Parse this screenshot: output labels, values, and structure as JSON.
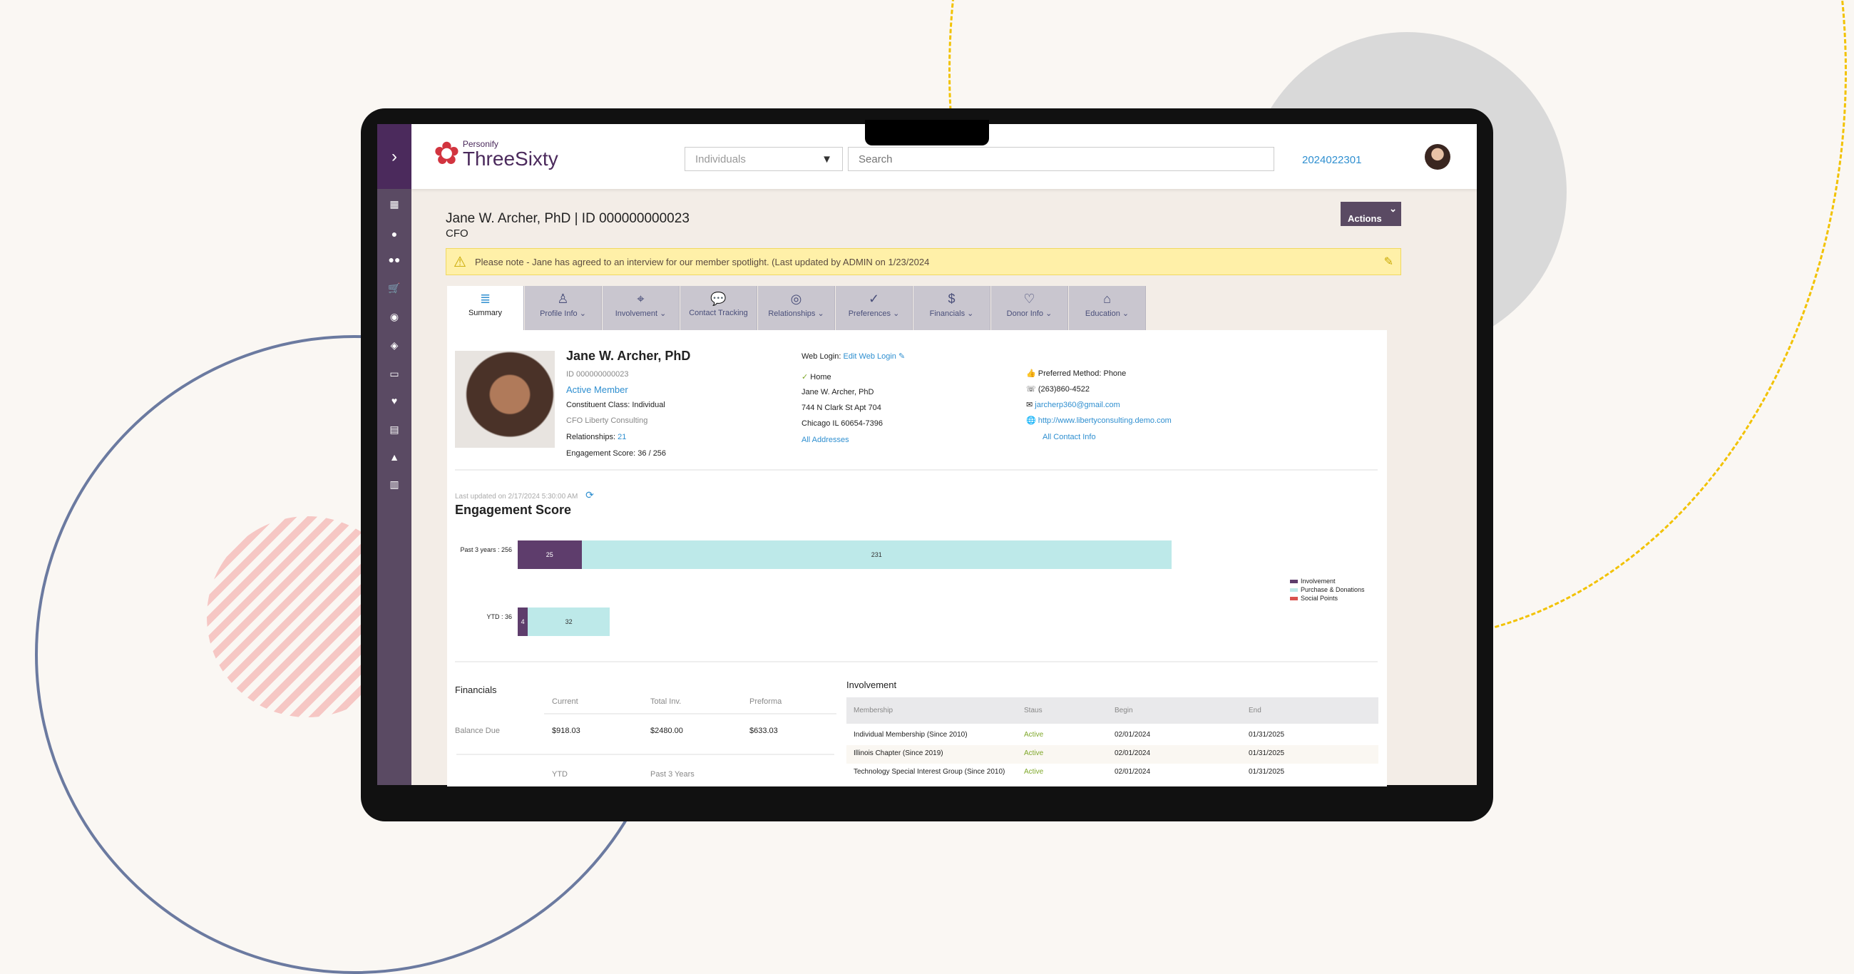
{
  "colors": {
    "sidebar": "#5a4a63",
    "brand": "#4b2a5c",
    "accent": "#2f8fd0",
    "involvement": "#5e3d6c",
    "purchase": "#bde9e9",
    "social": "#d9534f",
    "active": "#7fa82a",
    "banner": "#fff0a8"
  },
  "header": {
    "logo_small": "Personify",
    "logo_big": "ThreeSixty",
    "search_type": "Individuals",
    "search_placeholder": "Search",
    "record_id": "2024022301"
  },
  "sidebar": {
    "icons": [
      "expand-chevron-icon",
      "apps-grid-icon",
      "person-icon",
      "people-icon",
      "cart-icon",
      "badge-icon",
      "layers-icon",
      "calendar-icon",
      "heart-icon",
      "clipboard-icon",
      "graduation-cap-icon",
      "bar-chart-icon"
    ]
  },
  "page": {
    "title": "Jane W. Archer, PhD | ID 000000000023",
    "subtitle": "CFO",
    "actions": "Actions",
    "banner": "Please note - Jane has agreed to an interview for our member spotlight. (Last updated by ADMIN on 1/23/2024"
  },
  "tabs": [
    {
      "label": "Summary",
      "icon": "≣"
    },
    {
      "label": "Profile Info ⌄",
      "icon": "♙"
    },
    {
      "label": "Involvement ⌄",
      "icon": "⌖"
    },
    {
      "label": "Contact Tracking",
      "icon": "💬"
    },
    {
      "label": "Relationships ⌄",
      "icon": "◎"
    },
    {
      "label": "Preferences ⌄",
      "icon": "✓"
    },
    {
      "label": "Financials ⌄",
      "icon": "$"
    },
    {
      "label": "Donor Info ⌄",
      "icon": "♡"
    },
    {
      "label": "Education ⌄",
      "icon": "⌂"
    }
  ],
  "profile": {
    "name": "Jane W. Archer, PhD",
    "id": "ID 000000000023",
    "status": "Active Member",
    "class": "Constituent Class: Individual",
    "company": "CFO Liberty Consulting",
    "relationships_label": "Relationships: ",
    "relationships_count": "21",
    "engagement": "Engagement Score: 36 / 256",
    "web_login_label": "Web Login: ",
    "web_login_link": "Edit Web Login",
    "address_type": "Home",
    "address_name": "Jane W. Archer, PhD",
    "address_line1": "744 N Clark St Apt 704",
    "address_line2": "Chicago  IL  60654-7396",
    "all_addresses": "All Addresses",
    "preferred": "Preferred Method: Phone",
    "phone": "(263)860-4522",
    "email": "jarcherp360@gmail.com",
    "website": "http://www.libertyconsulting.demo.com",
    "all_contact": "All Contact Info"
  },
  "engagement": {
    "last_updated": "Last updated on 2/17/2024 5:30:00 AM",
    "title": "Engagement Score"
  },
  "chart_data": {
    "type": "bar",
    "orientation": "horizontal",
    "stacked": true,
    "title": "Engagement Score",
    "categories": [
      "Past 3 years : 256",
      "YTD : 36"
    ],
    "series": [
      {
        "name": "Involvement",
        "values": [
          25,
          4
        ]
      },
      {
        "name": "Purchase & Donations",
        "values": [
          231,
          32
        ]
      },
      {
        "name": "Social Points",
        "values": [
          0,
          0
        ]
      }
    ],
    "xlim": [
      0,
      256
    ],
    "legend": "right"
  },
  "financials": {
    "title": "Financials",
    "columns": [
      "Current",
      "Total Inv.",
      "Preforma"
    ],
    "row_label": "Balance Due",
    "row_values": [
      "$918.03",
      "$2480.00",
      "$633.03"
    ],
    "columns2": [
      "YTD",
      "Past 3 Years"
    ]
  },
  "involvement": {
    "title": "Involvement",
    "columns": [
      "Membership",
      "Staus",
      "Begin",
      "End"
    ],
    "rows": [
      [
        "Individual Membership (Since 2010)",
        "Active",
        "02/01/2024",
        "01/31/2025"
      ],
      [
        "Illinois Chapter (Since 2019)",
        "Active",
        "02/01/2024",
        "01/31/2025"
      ],
      [
        "Technology Special Interest Group (Since 2010)",
        "Active",
        "02/01/2024",
        "01/31/2025"
      ]
    ]
  }
}
